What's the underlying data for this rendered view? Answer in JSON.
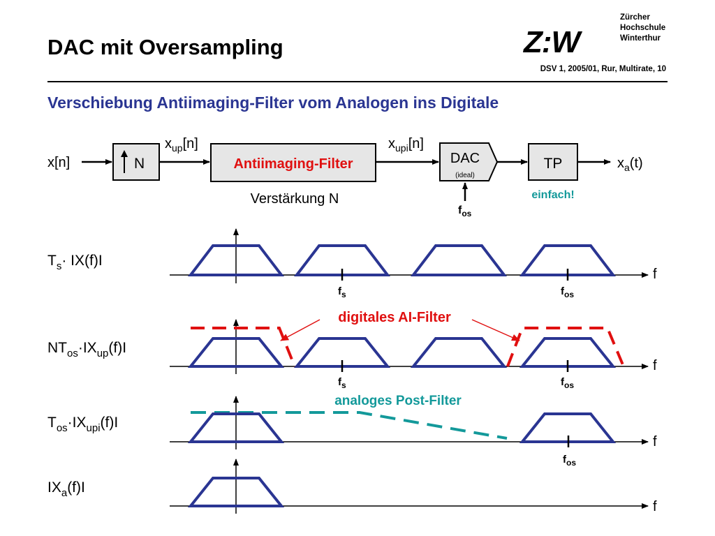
{
  "title": "DAC mit Oversampling",
  "reference": "DSV 1, 2005/01, Rur, Multirate, 10",
  "institution": {
    "logo": "Z:W",
    "name_lines": [
      "Zürcher",
      "Hochschule",
      "Winterthur"
    ]
  },
  "subtitle": "Verschiebung Antiimaging-Filter vom Analogen ins Digitale",
  "colors": {
    "accent": "#2a3592",
    "trapezoid": "#2a3592",
    "digital_filter": "#e01010",
    "analog_filter": "#13999a"
  },
  "block_diagram": {
    "input": "x[n]",
    "upsampler": "N",
    "upsampler_arrow": "up-arrow",
    "signal_up": {
      "base": "x",
      "sub": "up",
      "suffix": "[n]"
    },
    "filter": "Antiimaging-Filter",
    "filter_gain": "Verstärkung N",
    "signal_upi": {
      "base": "x",
      "sub": "upi",
      "suffix": "[n]"
    },
    "dac": "DAC",
    "dac_note": "(ideal)",
    "dac_clock": {
      "base": "f",
      "sub": "os"
    },
    "lowpass": "TP",
    "lowpass_note": "einfach!",
    "output": {
      "base": "x",
      "sub": "a",
      "suffix": "(t)"
    }
  },
  "spectra": {
    "axis_label": "f",
    "fs": {
      "base": "f",
      "sub": "s"
    },
    "fos": {
      "base": "f",
      "sub": "os"
    },
    "row1": {
      "label_pre": "T",
      "label_sub": "s",
      "label_post": "· IX(f)I"
    },
    "row2": {
      "label_pre": "NT",
      "label_sub": "os",
      "label_mid": "·IX",
      "label_sub2": "up",
      "label_post": "(f)I"
    },
    "row3": {
      "label_pre": "T",
      "label_sub": "os",
      "label_mid": "·IX",
      "label_sub2": "upi",
      "label_post": "(f)I"
    },
    "row4": {
      "label_pre": "IX",
      "label_sub": "a",
      "label_post": "(f)I"
    },
    "digital_filter_label": "digitales AI-Filter",
    "analog_filter_label": "analoges Post-Filter"
  }
}
